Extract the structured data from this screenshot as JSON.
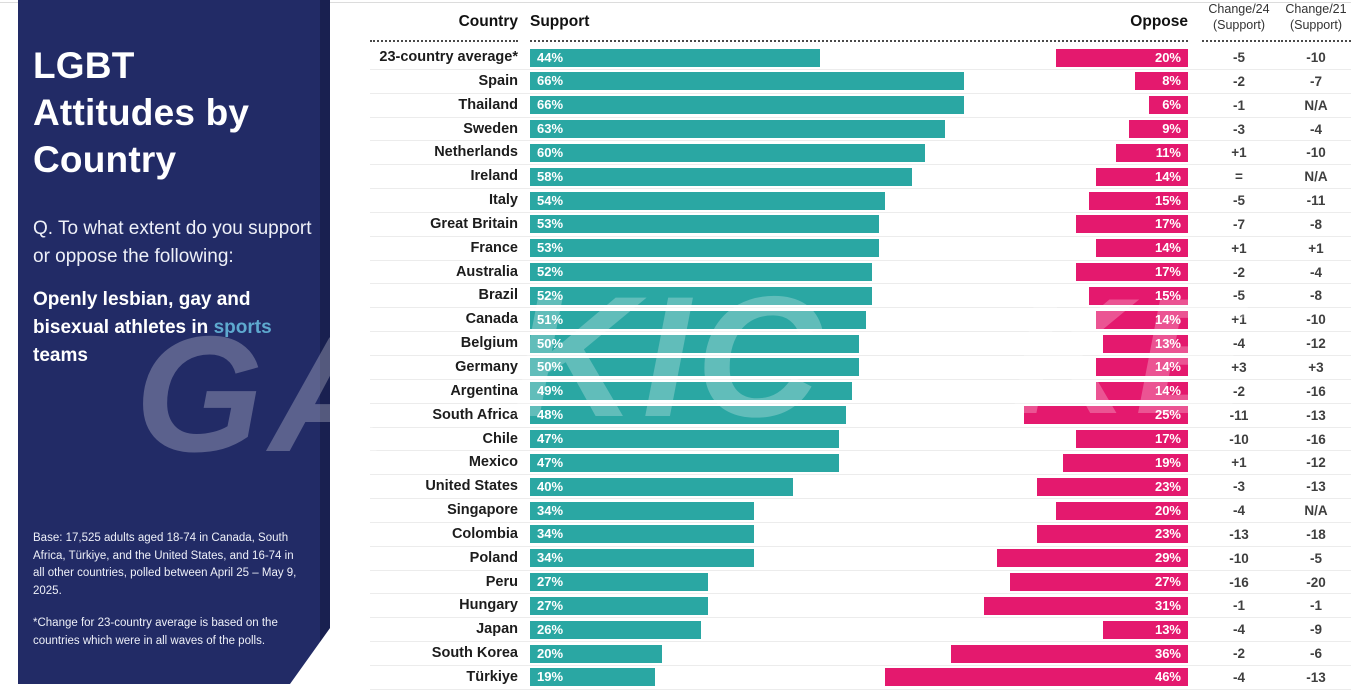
{
  "sidebar": {
    "title": "LGBT\nAttitudes by\nCountry",
    "question": "Q. To what extent do you support or oppose the following:",
    "statement": {
      "before": "Openly lesbian, gay and bisexual athletes in ",
      "highlight": "sports",
      "after": " teams"
    },
    "base_note": "Base: 17,525 adults aged 18-74 in Canada, South Africa, Türkiye, and the United States, and 16-74 in all other countries, polled between April 25 – May 9, 2025.",
    "footnote": "*Change for 23-country average is based on the countries which were in all waves of the polls.",
    "background_color": "#222b66",
    "highlight_color": "#5ea9cf"
  },
  "watermark": {
    "left": "GA",
    "center": "KIC",
    "right": "KE"
  },
  "table": {
    "headers": {
      "country": "Country",
      "support": "Support",
      "oppose": "Oppose",
      "change24_line1": "Change/24",
      "change24_line2": "(Support)",
      "change21_line1": "Change/21",
      "change21_line2": "(Support)"
    }
  },
  "chart_data": {
    "type": "bar",
    "orientation": "horizontal-diverging",
    "title": "LGBT Attitudes by Country — Openly lesbian, gay and bisexual athletes in sports teams",
    "legend": [
      "Support",
      "Oppose"
    ],
    "units": "percent",
    "axis_max_percent": 100,
    "support_color": "#2aa7a3",
    "oppose_color": "#e4196e",
    "columns": [
      "Country",
      "Support %",
      "Oppose %",
      "Change/24 (Support)",
      "Change/21 (Support)"
    ],
    "rows": [
      {
        "country": "23-country average*",
        "support": 44,
        "oppose": 20,
        "change24": "-5",
        "change21": "-10"
      },
      {
        "country": "Spain",
        "support": 66,
        "oppose": 8,
        "change24": "-2",
        "change21": "-7"
      },
      {
        "country": "Thailand",
        "support": 66,
        "oppose": 6,
        "change24": "-1",
        "change21": "N/A"
      },
      {
        "country": "Sweden",
        "support": 63,
        "oppose": 9,
        "change24": "-3",
        "change21": "-4"
      },
      {
        "country": "Netherlands",
        "support": 60,
        "oppose": 11,
        "change24": "+1",
        "change21": "-10"
      },
      {
        "country": "Ireland",
        "support": 58,
        "oppose": 14,
        "change24": "=",
        "change21": "N/A"
      },
      {
        "country": "Italy",
        "support": 54,
        "oppose": 15,
        "change24": "-5",
        "change21": "-11"
      },
      {
        "country": "Great Britain",
        "support": 53,
        "oppose": 17,
        "change24": "-7",
        "change21": "-8"
      },
      {
        "country": "France",
        "support": 53,
        "oppose": 14,
        "change24": "+1",
        "change21": "+1"
      },
      {
        "country": "Australia",
        "support": 52,
        "oppose": 17,
        "change24": "-2",
        "change21": "-4"
      },
      {
        "country": "Brazil",
        "support": 52,
        "oppose": 15,
        "change24": "-5",
        "change21": "-8"
      },
      {
        "country": "Canada",
        "support": 51,
        "oppose": 14,
        "change24": "+1",
        "change21": "-10"
      },
      {
        "country": "Belgium",
        "support": 50,
        "oppose": 13,
        "change24": "-4",
        "change21": "-12"
      },
      {
        "country": "Germany",
        "support": 50,
        "oppose": 14,
        "change24": "+3",
        "change21": "+3"
      },
      {
        "country": "Argentina",
        "support": 49,
        "oppose": 14,
        "change24": "-2",
        "change21": "-16"
      },
      {
        "country": "South Africa",
        "support": 48,
        "oppose": 25,
        "change24": "-11",
        "change21": "-13"
      },
      {
        "country": "Chile",
        "support": 47,
        "oppose": 17,
        "change24": "-10",
        "change21": "-16"
      },
      {
        "country": "Mexico",
        "support": 47,
        "oppose": 19,
        "change24": "+1",
        "change21": "-12"
      },
      {
        "country": "United States",
        "support": 40,
        "oppose": 23,
        "change24": "-3",
        "change21": "-13"
      },
      {
        "country": "Singapore",
        "support": 34,
        "oppose": 20,
        "change24": "-4",
        "change21": "N/A"
      },
      {
        "country": "Colombia",
        "support": 34,
        "oppose": 23,
        "change24": "-13",
        "change21": "-18"
      },
      {
        "country": "Poland",
        "support": 34,
        "oppose": 29,
        "change24": "-10",
        "change21": "-5"
      },
      {
        "country": "Peru",
        "support": 27,
        "oppose": 27,
        "change24": "-16",
        "change21": "-20"
      },
      {
        "country": "Hungary",
        "support": 27,
        "oppose": 31,
        "change24": "-1",
        "change21": "-1"
      },
      {
        "country": "Japan",
        "support": 26,
        "oppose": 13,
        "change24": "-4",
        "change21": "-9"
      },
      {
        "country": "South Korea",
        "support": 20,
        "oppose": 36,
        "change24": "-2",
        "change21": "-6"
      },
      {
        "country": "Türkiye",
        "support": 19,
        "oppose": 46,
        "change24": "-4",
        "change21": "-13"
      }
    ]
  }
}
